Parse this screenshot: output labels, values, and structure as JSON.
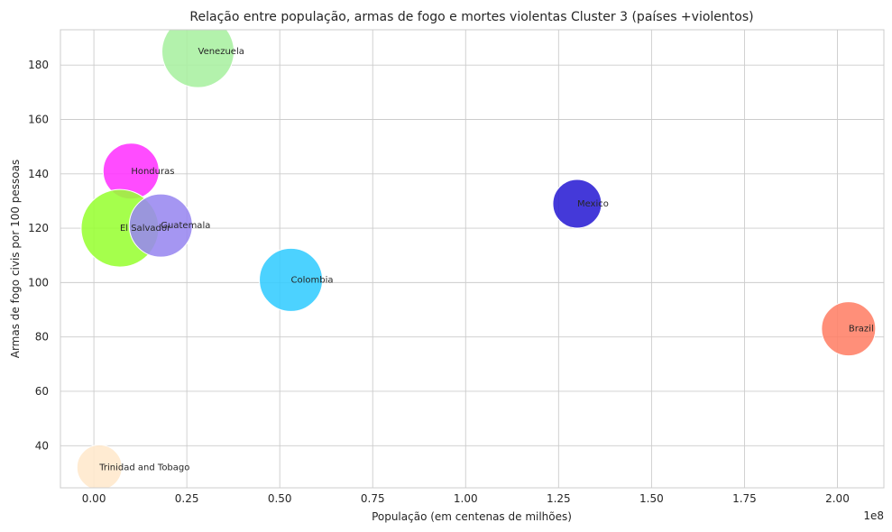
{
  "chart_data": {
    "type": "scatter",
    "title": "Relação entre população, armas de fogo e mortes violentas Cluster 3 (países +violentos)",
    "xlabel": "População (em centenas de milhões)",
    "ylabel": "Armas de fogo civis por 100 pessoas",
    "x_offset_label": "1e8",
    "xlim": [
      -0.09,
      2.125
    ],
    "ylim": [
      24.5,
      193
    ],
    "xticks": [
      0.0,
      0.25,
      0.5,
      0.75,
      1.0,
      1.25,
      1.5,
      1.75,
      2.0
    ],
    "xtick_labels": [
      "0.00",
      "0.25",
      "0.50",
      "0.75",
      "1.00",
      "1.25",
      "1.50",
      "1.75",
      "2.00"
    ],
    "yticks": [
      40,
      60,
      80,
      100,
      120,
      140,
      160,
      180
    ],
    "ytick_labels": [
      "40",
      "60",
      "80",
      "100",
      "120",
      "140",
      "160",
      "180"
    ],
    "grid": true,
    "points": [
      {
        "label": "Venezuela",
        "x": 0.28,
        "y": 185,
        "size": 40,
        "color": "#a8f0a0"
      },
      {
        "label": "Honduras",
        "x": 0.1,
        "y": 141,
        "size": 31,
        "color": "#ff33ff"
      },
      {
        "label": "El Salvador",
        "x": 0.07,
        "y": 120,
        "size": 43,
        "color": "#99ff33"
      },
      {
        "label": "Guatemala",
        "x": 0.18,
        "y": 121,
        "size": 35,
        "color": "#9988f0"
      },
      {
        "label": "Colombia",
        "x": 0.53,
        "y": 101,
        "size": 35,
        "color": "#33ccff"
      },
      {
        "label": "Mexico",
        "x": 1.3,
        "y": 129,
        "size": 27,
        "color": "#2a1ed4"
      },
      {
        "label": "Brazil",
        "x": 2.03,
        "y": 83,
        "size": 30,
        "color": "#ff7f66"
      },
      {
        "label": "Trinidad and Tobago",
        "x": 0.015,
        "y": 32,
        "size": 25,
        "color": "#ffe8cc"
      }
    ]
  }
}
